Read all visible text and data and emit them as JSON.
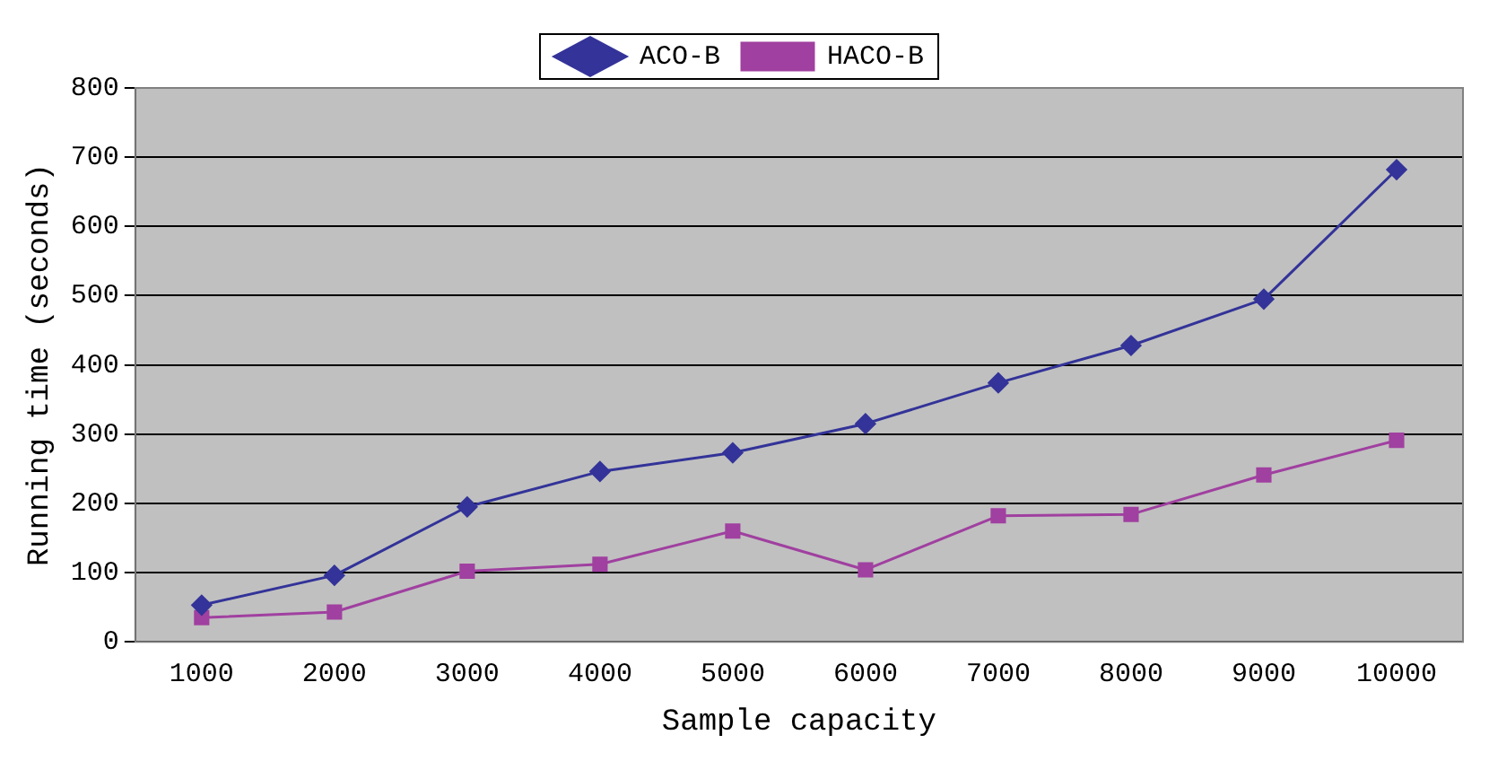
{
  "chart_data": {
    "type": "line",
    "xlabel": "Sample capacity",
    "ylabel": "Running time (seconds)",
    "categories": [
      "1000",
      "2000",
      "3000",
      "4000",
      "5000",
      "6000",
      "7000",
      "8000",
      "9000",
      "10000"
    ],
    "series": [
      {
        "name": "ACO-B",
        "color": "#333399",
        "marker": "diamond",
        "values": [
          53,
          96,
          195,
          246,
          273,
          315,
          374,
          428,
          495,
          682
        ]
      },
      {
        "name": "HACO-B",
        "color": "#a040a0",
        "marker": "square",
        "values": [
          35,
          43,
          102,
          112,
          160,
          104,
          182,
          184,
          241,
          291
        ]
      }
    ],
    "ylim": [
      0,
      800
    ],
    "yticks": [
      0,
      100,
      200,
      300,
      400,
      500,
      600,
      700,
      800
    ],
    "grid": "y",
    "legend": "top",
    "line_style": "solid"
  }
}
